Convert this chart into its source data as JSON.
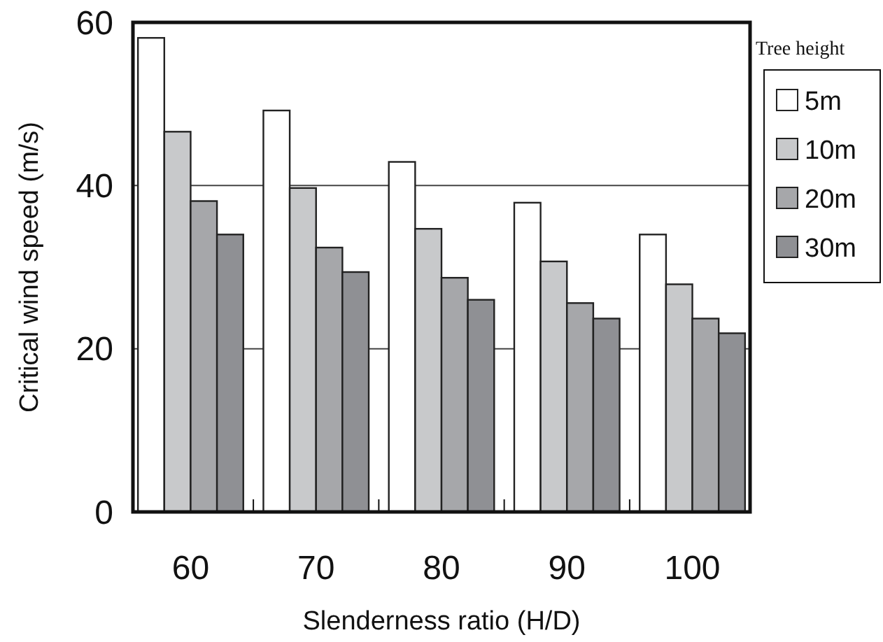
{
  "chart_data": {
    "type": "bar",
    "xlabel": "Slenderness ratio (H/D)",
    "ylabel": "Critical wind speed (m/s)",
    "legend_title": "Tree height",
    "categories": [
      "60",
      "70",
      "80",
      "90",
      "100"
    ],
    "series": [
      {
        "name": "5m",
        "color": "#ffffff",
        "values": [
          58.1,
          49.2,
          42.9,
          37.9,
          34.0
        ]
      },
      {
        "name": "10m",
        "color": "#c8c9cb",
        "values": [
          46.6,
          39.7,
          34.7,
          30.7,
          27.9
        ]
      },
      {
        "name": "20m",
        "color": "#a6a7aa",
        "values": [
          38.1,
          32.4,
          28.7,
          25.6,
          23.7
        ]
      },
      {
        "name": "30m",
        "color": "#8f9094",
        "values": [
          34.0,
          29.4,
          26.0,
          23.7,
          21.9
        ]
      }
    ],
    "ylim": [
      0,
      60
    ],
    "yticks": [
      0,
      20,
      40,
      60
    ],
    "grid": "y",
    "legend": "top right"
  }
}
